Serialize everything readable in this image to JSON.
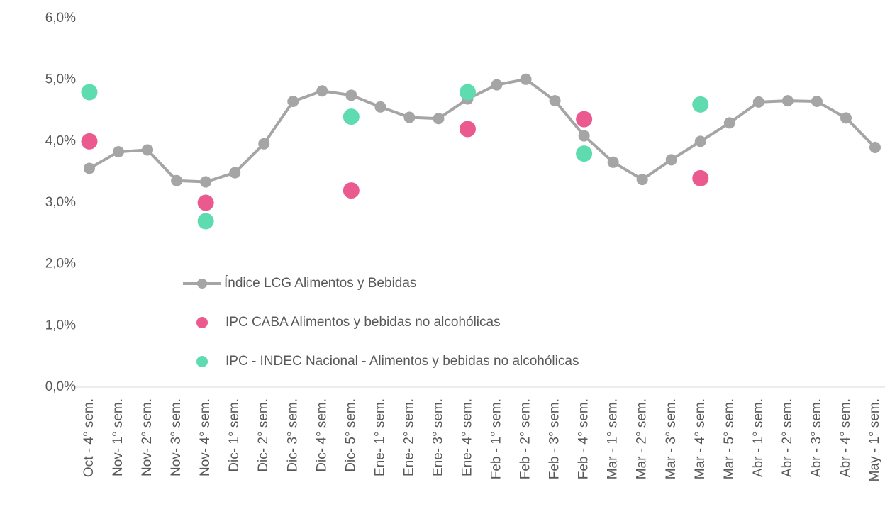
{
  "chart_data": {
    "type": "line",
    "categories": [
      "Oct - 4° sem.",
      "Nov- 1° sem.",
      "Nov- 2° sem.",
      "Nov- 3° sem.",
      "Nov- 4° sem.",
      "Dic- 1° sem.",
      "Dic- 2° sem.",
      "Dic- 3° sem.",
      "Dic- 4° sem.",
      "Dic- 5° sem.",
      "Ene- 1° sem.",
      "Ene- 2° sem.",
      "Ene- 3° sem.",
      "Ene- 4° sem.",
      "Feb - 1° sem.",
      "Feb - 2° sem.",
      "Feb - 3° sem.",
      "Feb - 4° sem.",
      "Mar - 1° sem.",
      "Mar - 2° sem.",
      "Mar - 3° sem.",
      "Mar - 4° sem.",
      "Mar - 5° sem.",
      "Abr - 1° sem.",
      "Abr - 2° sem.",
      "Abr - 3° sem.",
      "Abr - 4° sem.",
      "May - 1° sem."
    ],
    "series": [
      {
        "name": "Índice LCG Alimentos y Bebidas",
        "color": "#a5a5a5",
        "mode": "line",
        "values": [
          3.56,
          3.83,
          3.86,
          3.36,
          3.34,
          3.49,
          3.96,
          4.65,
          4.82,
          4.75,
          4.56,
          4.39,
          4.37,
          4.69,
          4.92,
          5.01,
          4.66,
          4.09,
          3.66,
          3.38,
          3.7,
          4.0,
          4.3,
          4.64,
          4.66,
          4.65,
          4.38,
          3.9
        ]
      },
      {
        "name": "IPC CABA Alimentos y bebidas no alcohólicas",
        "color": "#eb5a8f",
        "mode": "markers",
        "values": [
          4.0,
          null,
          null,
          null,
          3.0,
          null,
          null,
          null,
          null,
          3.2,
          null,
          null,
          null,
          4.2,
          null,
          null,
          null,
          4.36,
          null,
          null,
          null,
          3.4,
          null,
          null,
          null,
          null,
          null,
          null
        ]
      },
      {
        "name": "IPC - INDEC Nacional - Alimentos y bebidas no alcohólicas",
        "color": "#5fdbb0",
        "mode": "markers",
        "values": [
          4.8,
          null,
          null,
          null,
          2.7,
          null,
          null,
          null,
          null,
          4.4,
          null,
          null,
          null,
          4.8,
          null,
          null,
          null,
          3.8,
          null,
          null,
          null,
          4.6,
          null,
          null,
          null,
          null,
          null,
          null
        ]
      }
    ],
    "ylim": [
      0,
      6
    ],
    "yticks": [
      {
        "value": 0,
        "label": "0,0%"
      },
      {
        "value": 1,
        "label": "1,0%"
      },
      {
        "value": 2,
        "label": "2,0%"
      },
      {
        "value": 3,
        "label": "3,0%"
      },
      {
        "value": 4,
        "label": "4,0%"
      },
      {
        "value": 5,
        "label": "5,0%"
      },
      {
        "value": 6,
        "label": "6,0%"
      }
    ],
    "grid": false
  }
}
